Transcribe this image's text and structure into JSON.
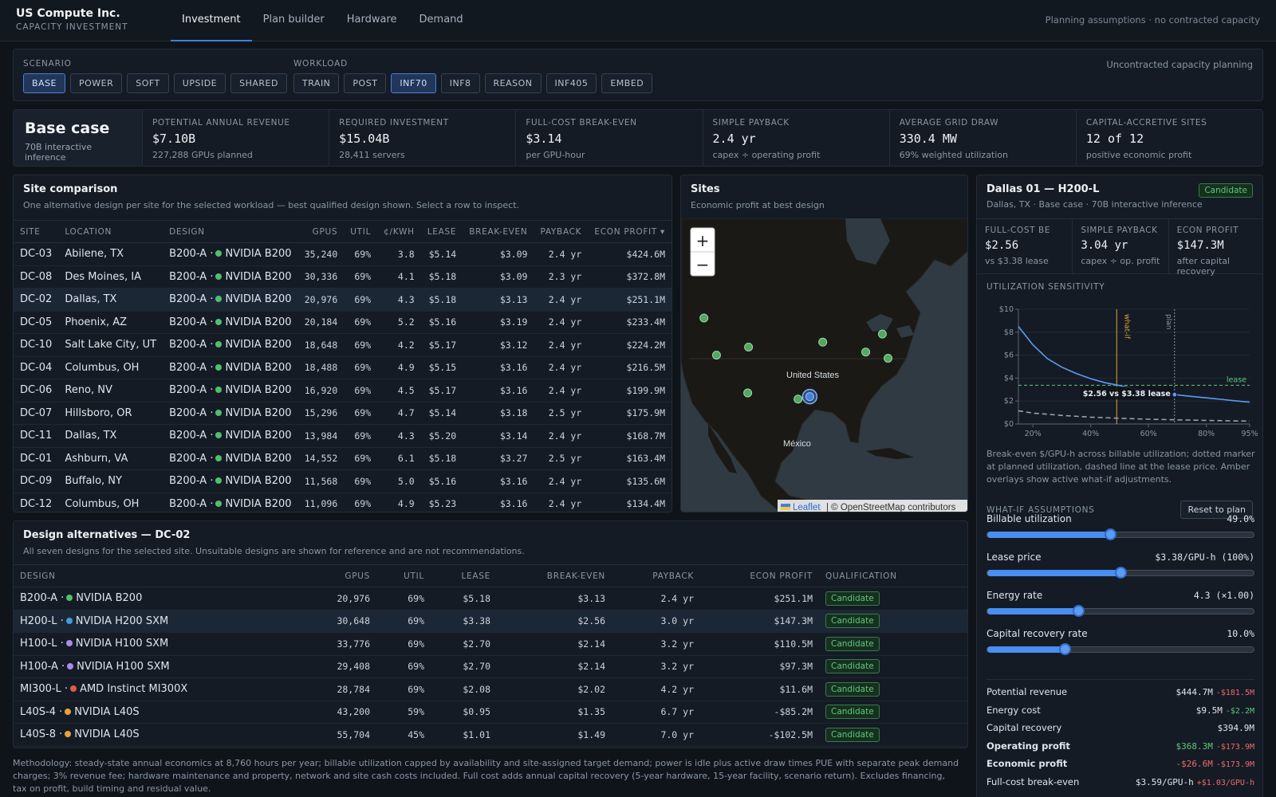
{
  "company": {
    "name": "US Compute Inc.",
    "subtitle": "CAPACITY INVESTMENT"
  },
  "nav": {
    "tabs": [
      "Investment",
      "Plan builder",
      "Hardware",
      "Demand"
    ],
    "active": 0
  },
  "top_note": "Planning assumptions · no contracted capacity",
  "scenario": {
    "label": "SCENARIO",
    "options": [
      "BASE",
      "POWER",
      "SOFT",
      "UPSIDE",
      "SHARED"
    ],
    "active": 0
  },
  "workload": {
    "label": "WORKLOAD",
    "options": [
      "TRAIN",
      "POST",
      "INF70",
      "INF8",
      "REASON",
      "INF405",
      "EMBED"
    ],
    "active": 2
  },
  "uncontracted_note": "Uncontracted capacity planning",
  "case": {
    "title": "Base case",
    "subtitle": "70B interactive inference"
  },
  "kpis": [
    {
      "label": "POTENTIAL ANNUAL REVENUE",
      "value": "$7.10B",
      "sub": "227,288 GPUs planned"
    },
    {
      "label": "REQUIRED INVESTMENT",
      "value": "$15.04B",
      "sub": "28,411 servers"
    },
    {
      "label": "FULL-COST BREAK-EVEN",
      "value": "$3.14",
      "sub": "per GPU-hour"
    },
    {
      "label": "SIMPLE PAYBACK",
      "value": "2.4 yr",
      "sub": "capex ÷ operating profit"
    },
    {
      "label": "AVERAGE GRID DRAW",
      "value": "330.4 MW",
      "sub": "69% weighted utilization"
    },
    {
      "label": "CAPITAL-ACCRETIVE SITES",
      "value": "12 of 12",
      "sub": "positive economic profit"
    }
  ],
  "site_comparison": {
    "title": "Site comparison",
    "subtitle": "One alternative design per site for the selected workload — best qualified design shown. Select a row to inspect.",
    "columns": [
      "SITE",
      "LOCATION",
      "DESIGN",
      "GPUS",
      "UTIL",
      "¢/KWH",
      "LEASE",
      "BREAK-EVEN",
      "PAYBACK",
      "ECON PROFIT ▾"
    ],
    "selected": 2,
    "rows": [
      {
        "site": "DC-03",
        "location": "Abilene, TX",
        "design_code": "B200-A ·",
        "design_name": "NVIDIA B200",
        "color": "#4fbf6c",
        "gpus": "35,240",
        "util": "69%",
        "ckwh": "3.8",
        "lease": "$5.14",
        "be": "$3.09",
        "payback": "2.4 yr",
        "profit": "$424.6M"
      },
      {
        "site": "DC-08",
        "location": "Des Moines, IA",
        "design_code": "B200-A ·",
        "design_name": "NVIDIA B200",
        "color": "#4fbf6c",
        "gpus": "30,336",
        "util": "69%",
        "ckwh": "4.1",
        "lease": "$5.18",
        "be": "$3.09",
        "payback": "2.3 yr",
        "profit": "$372.8M"
      },
      {
        "site": "DC-02",
        "location": "Dallas, TX",
        "design_code": "B200-A ·",
        "design_name": "NVIDIA B200",
        "color": "#4fbf6c",
        "gpus": "20,976",
        "util": "69%",
        "ckwh": "4.3",
        "lease": "$5.18",
        "be": "$3.13",
        "payback": "2.4 yr",
        "profit": "$251.1M"
      },
      {
        "site": "DC-05",
        "location": "Phoenix, AZ",
        "design_code": "B200-A ·",
        "design_name": "NVIDIA B200",
        "color": "#4fbf6c",
        "gpus": "20,184",
        "util": "69%",
        "ckwh": "5.2",
        "lease": "$5.16",
        "be": "$3.19",
        "payback": "2.4 yr",
        "profit": "$233.4M"
      },
      {
        "site": "DC-10",
        "location": "Salt Lake City, UT",
        "design_code": "B200-A ·",
        "design_name": "NVIDIA B200",
        "color": "#4fbf6c",
        "gpus": "18,648",
        "util": "69%",
        "ckwh": "4.2",
        "lease": "$5.17",
        "be": "$3.12",
        "payback": "2.4 yr",
        "profit": "$224.2M"
      },
      {
        "site": "DC-04",
        "location": "Columbus, OH",
        "design_code": "B200-A ·",
        "design_name": "NVIDIA B200",
        "color": "#4fbf6c",
        "gpus": "18,488",
        "util": "69%",
        "ckwh": "4.9",
        "lease": "$5.15",
        "be": "$3.16",
        "payback": "2.4 yr",
        "profit": "$216.5M"
      },
      {
        "site": "DC-06",
        "location": "Reno, NV",
        "design_code": "B200-A ·",
        "design_name": "NVIDIA B200",
        "color": "#4fbf6c",
        "gpus": "16,920",
        "util": "69%",
        "ckwh": "4.5",
        "lease": "$5.17",
        "be": "$3.16",
        "payback": "2.4 yr",
        "profit": "$199.9M"
      },
      {
        "site": "DC-07",
        "location": "Hillsboro, OR",
        "design_code": "B200-A ·",
        "design_name": "NVIDIA B200",
        "color": "#4fbf6c",
        "gpus": "15,296",
        "util": "69%",
        "ckwh": "4.7",
        "lease": "$5.14",
        "be": "$3.18",
        "payback": "2.5 yr",
        "profit": "$175.9M"
      },
      {
        "site": "DC-11",
        "location": "Dallas, TX",
        "design_code": "B200-A ·",
        "design_name": "NVIDIA B200",
        "color": "#4fbf6c",
        "gpus": "13,984",
        "util": "69%",
        "ckwh": "4.3",
        "lease": "$5.20",
        "be": "$3.14",
        "payback": "2.4 yr",
        "profit": "$168.7M"
      },
      {
        "site": "DC-01",
        "location": "Ashburn, VA",
        "design_code": "B200-A ·",
        "design_name": "NVIDIA B200",
        "color": "#4fbf6c",
        "gpus": "14,552",
        "util": "69%",
        "ckwh": "6.1",
        "lease": "$5.18",
        "be": "$3.27",
        "payback": "2.5 yr",
        "profit": "$163.4M"
      },
      {
        "site": "DC-09",
        "location": "Buffalo, NY",
        "design_code": "B200-A ·",
        "design_name": "NVIDIA B200",
        "color": "#4fbf6c",
        "gpus": "11,568",
        "util": "69%",
        "ckwh": "5.0",
        "lease": "$5.16",
        "be": "$3.16",
        "payback": "2.4 yr",
        "profit": "$135.6M"
      },
      {
        "site": "DC-12",
        "location": "Columbus, OH",
        "design_code": "B200-A ·",
        "design_name": "NVIDIA B200",
        "color": "#4fbf6c",
        "gpus": "11,096",
        "util": "69%",
        "ckwh": "4.9",
        "lease": "$5.23",
        "be": "$3.16",
        "payback": "2.4 yr",
        "profit": "$134.4M"
      }
    ]
  },
  "sites_map": {
    "title": "Sites",
    "subtitle": "Economic profit at best design",
    "zoom_in": "+",
    "zoom_out": "−",
    "label_us": "United States",
    "label_mx": "México",
    "attribution_link": "Leaflet",
    "attribution_text": "| © OpenStreetMap contributors"
  },
  "designs": {
    "title": "Design alternatives — DC-02",
    "subtitle": "All seven designs for the selected site. Unsuitable designs are shown for reference and are not recommendations.",
    "columns": [
      "DESIGN",
      "GPUS",
      "UTIL",
      "LEASE",
      "BREAK-EVEN",
      "PAYBACK",
      "ECON PROFIT",
      "QUALIFICATION"
    ],
    "selected": 1,
    "rows": [
      {
        "code": "B200-A ·",
        "name": "NVIDIA B200",
        "color": "#4fbf6c",
        "gpus": "20,976",
        "util": "69%",
        "lease": "$5.18",
        "be": "$3.13",
        "payback": "2.4 yr",
        "profit": "$251.1M",
        "positive": true,
        "qual": "Candidate"
      },
      {
        "code": "H200-L ·",
        "name": "NVIDIA H200 SXM",
        "color": "#3f9ce0",
        "gpus": "30,648",
        "util": "69%",
        "lease": "$3.38",
        "be": "$2.56",
        "payback": "3.0 yr",
        "profit": "$147.3M",
        "positive": true,
        "qual": "Candidate"
      },
      {
        "code": "H100-L ·",
        "name": "NVIDIA H100 SXM",
        "color": "#a98be8",
        "gpus": "33,776",
        "util": "69%",
        "lease": "$2.70",
        "be": "$2.14",
        "payback": "3.2 yr",
        "profit": "$110.5M",
        "positive": true,
        "qual": "Candidate"
      },
      {
        "code": "H100-A ·",
        "name": "NVIDIA H100 SXM",
        "color": "#a98be8",
        "gpus": "29,408",
        "util": "69%",
        "lease": "$2.70",
        "be": "$2.14",
        "payback": "3.2 yr",
        "profit": "$97.3M",
        "positive": true,
        "qual": "Candidate"
      },
      {
        "code": "MI300-L ·",
        "name": "AMD Instinct MI300X",
        "color": "#e05a4f",
        "gpus": "28,784",
        "util": "69%",
        "lease": "$2.08",
        "be": "$2.02",
        "payback": "4.2 yr",
        "profit": "$11.6M",
        "positive": true,
        "qual": "Candidate"
      },
      {
        "code": "L40S-4 ·",
        "name": "NVIDIA L40S",
        "color": "#e8a13a",
        "gpus": "43,200",
        "util": "59%",
        "lease": "$0.95",
        "be": "$1.35",
        "payback": "6.7 yr",
        "profit": "-$85.2M",
        "positive": false,
        "qual": "Candidate"
      },
      {
        "code": "L40S-8 ·",
        "name": "NVIDIA L40S",
        "color": "#e8a13a",
        "gpus": "55,704",
        "util": "45%",
        "lease": "$1.01",
        "be": "$1.49",
        "payback": "7.0 yr",
        "profit": "-$102.5M",
        "positive": false,
        "qual": "Candidate"
      }
    ]
  },
  "methodology": "Methodology: steady-state annual economics at 8,760 hours per year; billable utilization capped by availability and site-assigned target demand; power is idle plus active draw times PUE with separate peak demand charges; 3% revenue fee; hardware maintenance and property, network and site cash costs included. Full cost adds annual capital recovery (5-year hardware, 15-year facility, scenario return). Excludes financing, tax on profit, build timing and residual value.",
  "detail": {
    "title": "Dallas 01 — H200-L",
    "subtitle": "Dallas, TX · Base case · 70B interactive inference",
    "badge": "Candidate",
    "kpis": [
      {
        "label": "FULL-COST BE",
        "value": "$2.56",
        "sub": "vs $3.38 lease"
      },
      {
        "label": "SIMPLE PAYBACK",
        "value": "3.04 yr",
        "sub": "capex ÷ op. profit"
      },
      {
        "label": "ECON PROFIT",
        "value": "$147.3M",
        "sub": "after capital recovery"
      }
    ],
    "sensitivity_title": "UTILIZATION SENSITIVITY",
    "sensitivity_note": "Break-even $/GPU-h across billable utilization; dotted marker at planned utilization, dashed line at the lease price. Amber overlays show active what-if adjustments.",
    "whatif_title": "WHAT-IF ASSUMPTIONS",
    "reset_label": "Reset to plan",
    "sliders": [
      {
        "label": "Billable utilization",
        "value": "49.0%",
        "pos": 0.46
      },
      {
        "label": "Lease price",
        "value": "$3.38/GPU-h (100%)",
        "pos": 0.5
      },
      {
        "label": "Energy rate",
        "value": "4.3 (×1.00)",
        "pos": 0.34
      },
      {
        "label": "Capital recovery rate",
        "value": "10.0%",
        "pos": 0.29
      }
    ],
    "summary": [
      {
        "k": "Potential revenue",
        "v": "$444.7M",
        "d": "-$181.5M",
        "dc": "red",
        "bold": false,
        "vc": ""
      },
      {
        "k": "Energy cost",
        "v": "$9.5M",
        "d": "-$2.2M",
        "dc": "green",
        "bold": false,
        "vc": ""
      },
      {
        "k": "Capital recovery",
        "v": "$394.9M",
        "d": "",
        "dc": "",
        "bold": false,
        "vc": ""
      },
      {
        "k": "Operating profit",
        "v": "$368.3M",
        "d": "-$173.9M",
        "dc": "red",
        "bold": true,
        "vc": "green"
      },
      {
        "k": "Economic profit",
        "v": "-$26.6M",
        "d": "-$173.9M",
        "dc": "red",
        "bold": true,
        "vc": "red"
      },
      {
        "k": "Full-cost break-even",
        "v": "$3.59/GPU-h",
        "d": "+$1.03/GPU-h",
        "dc": "red",
        "bold": false,
        "vc": ""
      }
    ]
  },
  "chart_data": {
    "type": "line",
    "x_ticks": [
      "20%",
      "40%",
      "60%",
      "80%",
      "95%"
    ],
    "y_ticks": [
      "$0",
      "$2",
      "$4",
      "$6",
      "$8",
      "$10"
    ],
    "xlim": [
      0.15,
      0.95
    ],
    "ylim": [
      0,
      10
    ],
    "series": [
      {
        "x": [
          0.15,
          0.2,
          0.25,
          0.3,
          0.35,
          0.4,
          0.45,
          0.49,
          0.55,
          0.6,
          0.65,
          0.69,
          0.75,
          0.8,
          0.85,
          0.9,
          0.95
        ],
        "y": [
          8.5,
          6.9,
          5.7,
          4.95,
          4.4,
          3.95,
          3.6,
          3.4,
          3.1,
          2.92,
          2.75,
          2.56,
          2.4,
          2.28,
          2.15,
          2.02,
          1.9
        ]
      },
      {
        "x": [
          0.15,
          0.2,
          0.3,
          0.4,
          0.5,
          0.6,
          0.7,
          0.8,
          0.95
        ],
        "y": [
          1.15,
          0.95,
          0.75,
          0.6,
          0.5,
          0.42,
          0.36,
          0.31,
          0.25
        ]
      }
    ],
    "lease_price": 3.38,
    "lease_label": "lease",
    "whatif_x": 0.49,
    "whatif_label": "what-if",
    "plan_x": 0.69,
    "plan_label": "plan",
    "plan_value": 2.56,
    "annotation": "$2.56 vs $3.38 lease"
  },
  "map_points": [
    {
      "lon": -122.9,
      "lat": 45.5
    },
    {
      "lon": -119.8,
      "lat": 39.5
    },
    {
      "lon": -111.9,
      "lat": 40.8
    },
    {
      "lon": -112.1,
      "lat": 33.4
    },
    {
      "lon": -99.7,
      "lat": 32.4
    },
    {
      "lon": -96.8,
      "lat": 32.8,
      "selected": true
    },
    {
      "lon": -93.6,
      "lat": 41.6
    },
    {
      "lon": -83.0,
      "lat": 40.0
    },
    {
      "lon": -78.9,
      "lat": 42.9
    },
    {
      "lon": -77.5,
      "lat": 39.0
    }
  ]
}
